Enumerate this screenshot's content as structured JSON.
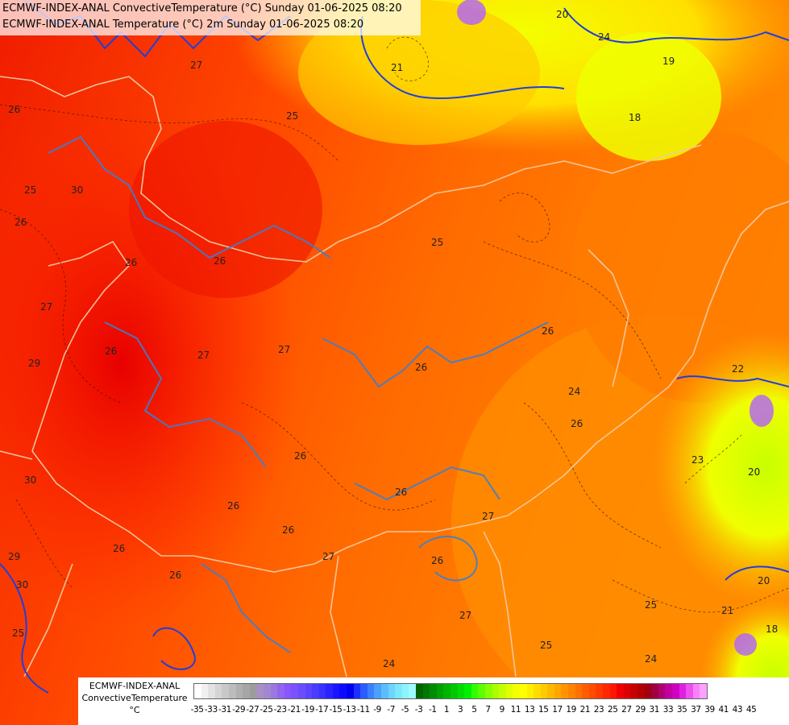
{
  "title": {
    "line1": "ECMWF-INDEX-ANAL ConvectiveTemperature (°C) Sunday 01-06-2025 08:20",
    "line2": "ECMWF-INDEX-ANAL Temperature (°C) 2m Sunday 01-06-2025 08:20"
  },
  "legend": {
    "model": "ECMWF-INDEX-ANAL",
    "parameter": "ConvectiveTemperature",
    "unit": "°C",
    "ticks": [
      "-35",
      "-33",
      "-31",
      "-29",
      "-27",
      "-25",
      "-23",
      "-21",
      "-19",
      "-17",
      "-15",
      "-13",
      "-11",
      "-9",
      "-7",
      "-5",
      "-3",
      "-1",
      "1",
      "3",
      "5",
      "7",
      "9",
      "11",
      "13",
      "15",
      "17",
      "19",
      "21",
      "23",
      "25",
      "27",
      "29",
      "31",
      "33",
      "35",
      "37",
      "39",
      "41",
      "43",
      "45"
    ],
    "colors": [
      "#ffffff",
      "#f0f0f0",
      "#e2e2e2",
      "#d4d4d4",
      "#c8c8c8",
      "#bcbcbc",
      "#b0b0b0",
      "#a6a6a6",
      "#9c9c9c",
      "#a890c0",
      "#a088d0",
      "#9a78e0",
      "#9066ee",
      "#8855ff",
      "#7b52ff",
      "#6a4dff",
      "#5c44ff",
      "#4a3cff",
      "#3a30ff",
      "#2b22ff",
      "#1a14ff",
      "#0a0aff",
      "#0000f0",
      "#1a30ff",
      "#2a5cff",
      "#3a80ff",
      "#4aa0ff",
      "#5cbcff",
      "#6cd4ff",
      "#7ce8ff",
      "#8cf4ff",
      "#9cfcff",
      "#006400",
      "#007800",
      "#008c00",
      "#00a000",
      "#00b400",
      "#00c800",
      "#00dc00",
      "#00f000",
      "#30ff00",
      "#5cff00",
      "#88ff00",
      "#a8ff00",
      "#c8ff00",
      "#e0ff00",
      "#f4ff00",
      "#ffff00",
      "#ffee00",
      "#ffdc00",
      "#ffca00",
      "#ffb800",
      "#ffa600",
      "#ff9400",
      "#ff8200",
      "#ff7000",
      "#ff5e00",
      "#ff4c00",
      "#ff3a00",
      "#ff2800",
      "#ff1600",
      "#f00000",
      "#dc0000",
      "#c80000",
      "#b40000",
      "#a00010",
      "#a00040",
      "#b00070",
      "#c000a0",
      "#d000c0",
      "#e020e0",
      "#ee50ee",
      "#f880f8",
      "#ffa0ff"
    ]
  },
  "map": {
    "contour_labels": [
      "20",
      "21",
      "24",
      "27",
      "26",
      "25",
      "18",
      "19",
      "22",
      "23",
      "29",
      "30"
    ]
  }
}
